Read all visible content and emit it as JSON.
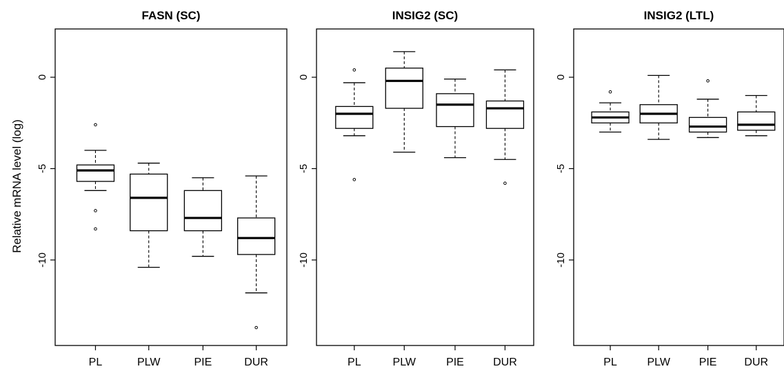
{
  "chart_data": {
    "type": "box",
    "ylabel": "Relative mRNA level (log)",
    "ylim": [
      -14.5,
      2.7
    ],
    "yticks": [
      0,
      -5,
      -10
    ],
    "ytick_labels": [
      "0",
      "-5",
      "-10"
    ],
    "categories": [
      "PL",
      "PLW",
      "PIE",
      "DUR"
    ],
    "panels": [
      {
        "title": "FASN (SC)",
        "boxes": [
          {
            "category": "PL",
            "whisker_low": -6.2,
            "q1": -5.7,
            "median": -5.1,
            "q3": -4.8,
            "whisker_high": -4.0,
            "outliers": [
              -2.6,
              -7.3,
              -8.3
            ]
          },
          {
            "category": "PLW",
            "whisker_low": -10.4,
            "q1": -8.4,
            "median": -6.6,
            "q3": -5.3,
            "whisker_high": -4.7,
            "outliers": []
          },
          {
            "category": "PIE",
            "whisker_low": -9.8,
            "q1": -8.4,
            "median": -7.7,
            "q3": -6.2,
            "whisker_high": -5.5,
            "outliers": []
          },
          {
            "category": "DUR",
            "whisker_low": -11.8,
            "q1": -9.7,
            "median": -8.8,
            "q3": -7.7,
            "whisker_high": -5.4,
            "outliers": [
              -13.7
            ]
          }
        ]
      },
      {
        "title": "INSIG2 (SC)",
        "boxes": [
          {
            "category": "PL",
            "whisker_low": -3.2,
            "q1": -2.8,
            "median": -2.0,
            "q3": -1.6,
            "whisker_high": -0.3,
            "outliers": [
              0.4,
              -5.6
            ]
          },
          {
            "category": "PLW",
            "whisker_low": -4.1,
            "q1": -1.7,
            "median": -0.2,
            "q3": 0.5,
            "whisker_high": 1.4,
            "outliers": []
          },
          {
            "category": "PIE",
            "whisker_low": -4.4,
            "q1": -2.7,
            "median": -1.5,
            "q3": -0.9,
            "whisker_high": -0.1,
            "outliers": []
          },
          {
            "category": "DUR",
            "whisker_low": -4.5,
            "q1": -2.8,
            "median": -1.7,
            "q3": -1.3,
            "whisker_high": 0.4,
            "outliers": [
              -5.8
            ]
          }
        ]
      },
      {
        "title": "INSIG2 (LTL)",
        "boxes": [
          {
            "category": "PL",
            "whisker_low": -3.0,
            "q1": -2.5,
            "median": -2.2,
            "q3": -1.9,
            "whisker_high": -1.4,
            "outliers": [
              -0.8
            ]
          },
          {
            "category": "PLW",
            "whisker_low": -3.4,
            "q1": -2.5,
            "median": -2.0,
            "q3": -1.5,
            "whisker_high": 0.1,
            "outliers": []
          },
          {
            "category": "PIE",
            "whisker_low": -3.3,
            "q1": -3.0,
            "median": -2.7,
            "q3": -2.2,
            "whisker_high": -1.2,
            "outliers": [
              -0.2
            ]
          },
          {
            "category": "DUR",
            "whisker_low": -3.2,
            "q1": -2.9,
            "median": -2.6,
            "q3": -1.9,
            "whisker_high": -1.0,
            "outliers": []
          }
        ]
      }
    ],
    "grid": false,
    "legend": "none"
  }
}
